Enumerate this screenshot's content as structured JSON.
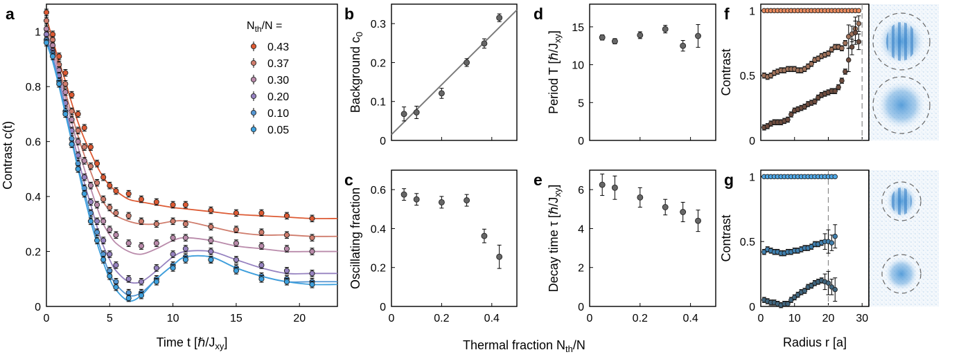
{
  "colors": {
    "series": [
      "#dd5a33",
      "#cf7c6c",
      "#b98aaa",
      "#9682c0",
      "#5596d2",
      "#3ea0dd"
    ],
    "grey": "#666666",
    "brown": "#a0725a",
    "brown_dark": "#6e4c3e",
    "salmon": "#e98a5e",
    "blue_light": "#4fa8e6",
    "blue_mid": "#3f7fae",
    "blue_dark": "#40667f"
  },
  "labels": {
    "shared_x": "Thermal fraction  N",
    "shared_x_sub": "th",
    "shared_x_tail": "/N"
  },
  "chart_data": [
    {
      "id": "a",
      "type": "line",
      "panel": "a",
      "xlabel": "Time t [ℏ/J",
      "xlabel_sub": "xy",
      "xlabel_tail": "]",
      "ylabel": "Contrast  c(t)",
      "xlim": [
        0,
        23
      ],
      "ylim": [
        0,
        1.1
      ],
      "xticks": [
        "0",
        "5",
        "10",
        "15",
        "20"
      ],
      "xtick_values": [
        0,
        5,
        10,
        15,
        20
      ],
      "yticks": [
        "0",
        "0.2",
        "0.4",
        "0.6",
        "0.8",
        "1"
      ],
      "ytick_values": [
        0,
        0.2,
        0.4,
        0.6,
        0.8,
        1
      ],
      "legend_title": "N",
      "legend_title_sub": "th",
      "legend_title_tail": "/N =",
      "legend_placement": "top-right",
      "x": [
        0,
        0.5,
        1,
        1.5,
        2,
        2.5,
        3,
        3.5,
        4,
        4.5,
        5,
        5.5,
        6.5,
        7.5,
        8.7,
        10,
        11,
        13,
        15,
        17,
        19,
        21
      ],
      "series": [
        {
          "name": "0.43",
          "values": [
            1.07,
            0.99,
            0.91,
            0.85,
            0.77,
            0.7,
            0.65,
            0.58,
            0.52,
            0.47,
            0.44,
            0.42,
            0.41,
            0.39,
            0.38,
            0.37,
            0.37,
            0.35,
            0.34,
            0.34,
            0.33,
            0.32
          ],
          "fit": [
            1.05,
            0.97,
            0.89,
            0.82,
            0.74,
            0.67,
            0.61,
            0.56,
            0.51,
            0.47,
            0.44,
            0.42,
            0.39,
            0.38,
            0.37,
            0.36,
            0.355,
            0.345,
            0.335,
            0.33,
            0.325,
            0.32
          ]
        },
        {
          "name": "0.37",
          "values": [
            1.04,
            0.97,
            0.88,
            0.81,
            0.71,
            0.64,
            0.58,
            0.51,
            0.45,
            0.39,
            0.36,
            0.34,
            0.33,
            0.31,
            0.3,
            0.31,
            0.3,
            0.29,
            0.28,
            0.27,
            0.26,
            0.25
          ],
          "fit": [
            1.02,
            0.95,
            0.87,
            0.78,
            0.7,
            0.62,
            0.55,
            0.49,
            0.43,
            0.38,
            0.35,
            0.33,
            0.31,
            0.3,
            0.3,
            0.31,
            0.31,
            0.29,
            0.27,
            0.26,
            0.26,
            0.255
          ]
        },
        {
          "name": "0.30",
          "values": [
            1.01,
            0.95,
            0.86,
            0.78,
            0.68,
            0.6,
            0.53,
            0.44,
            0.37,
            0.31,
            0.28,
            0.26,
            0.23,
            0.22,
            0.23,
            0.25,
            0.25,
            0.24,
            0.23,
            0.22,
            0.21,
            0.2
          ],
          "fit": [
            1.0,
            0.93,
            0.85,
            0.76,
            0.67,
            0.58,
            0.5,
            0.43,
            0.36,
            0.3,
            0.26,
            0.23,
            0.2,
            0.19,
            0.21,
            0.24,
            0.25,
            0.24,
            0.22,
            0.21,
            0.2,
            0.2
          ]
        },
        {
          "name": "0.20",
          "values": [
            0.99,
            0.93,
            0.84,
            0.74,
            0.64,
            0.55,
            0.47,
            0.38,
            0.31,
            0.24,
            0.19,
            0.15,
            0.1,
            0.09,
            0.14,
            0.19,
            0.21,
            0.2,
            0.17,
            0.15,
            0.13,
            0.12
          ],
          "fit": [
            0.98,
            0.91,
            0.83,
            0.73,
            0.63,
            0.54,
            0.45,
            0.37,
            0.29,
            0.22,
            0.17,
            0.13,
            0.09,
            0.09,
            0.13,
            0.18,
            0.2,
            0.2,
            0.17,
            0.14,
            0.12,
            0.12
          ]
        },
        {
          "name": "0.10",
          "values": [
            0.97,
            0.92,
            0.82,
            0.71,
            0.61,
            0.52,
            0.43,
            0.34,
            0.27,
            0.19,
            0.13,
            0.09,
            0.05,
            0.05,
            0.1,
            0.15,
            0.18,
            0.17,
            0.14,
            0.11,
            0.1,
            0.09
          ],
          "fit": [
            0.97,
            0.9,
            0.81,
            0.71,
            0.61,
            0.51,
            0.42,
            0.33,
            0.25,
            0.18,
            0.12,
            0.08,
            0.04,
            0.05,
            0.1,
            0.15,
            0.18,
            0.18,
            0.14,
            0.11,
            0.09,
            0.09
          ]
        },
        {
          "name": "0.05",
          "values": [
            0.96,
            0.91,
            0.81,
            0.7,
            0.59,
            0.5,
            0.41,
            0.31,
            0.24,
            0.17,
            0.11,
            0.07,
            0.03,
            0.04,
            0.09,
            0.14,
            0.17,
            0.17,
            0.13,
            0.1,
            0.09,
            0.08
          ],
          "fit": [
            0.96,
            0.89,
            0.8,
            0.7,
            0.6,
            0.5,
            0.4,
            0.31,
            0.23,
            0.16,
            0.1,
            0.06,
            0.02,
            0.04,
            0.1,
            0.15,
            0.18,
            0.18,
            0.14,
            0.11,
            0.09,
            0.08
          ]
        }
      ]
    },
    {
      "id": "b",
      "type": "scatter",
      "panel": "b",
      "ylabel": "Background  c",
      "ylabel_sub": "0",
      "xlim": [
        0,
        0.5
      ],
      "ylim": [
        0,
        0.35
      ],
      "yticks": [
        "0",
        "0.1",
        "0.2",
        "0.3"
      ],
      "ytick_values": [
        0,
        0.1,
        0.2,
        0.3
      ],
      "x": [
        0.05,
        0.1,
        0.2,
        0.3,
        0.37,
        0.43
      ],
      "values": [
        0.068,
        0.072,
        0.121,
        0.2,
        0.249,
        0.315
      ],
      "errors": [
        0.018,
        0.016,
        0.013,
        0.01,
        0.012,
        0.01
      ],
      "fit_line": {
        "x": [
          0,
          0.5
        ],
        "y": [
          0.015,
          0.335
        ]
      }
    },
    {
      "id": "c",
      "type": "scatter",
      "panel": "c",
      "ylabel": "Oscillating fraction",
      "xlim": [
        0,
        0.5
      ],
      "ylim": [
        0,
        0.7
      ],
      "xticks": [
        "0",
        "0.2",
        "0.4"
      ],
      "xtick_values": [
        0,
        0.2,
        0.4
      ],
      "yticks": [
        "0",
        "0.2",
        "0.4",
        "0.6"
      ],
      "ytick_values": [
        0,
        0.2,
        0.4,
        0.6
      ],
      "x": [
        0.05,
        0.1,
        0.2,
        0.3,
        0.37,
        0.43
      ],
      "values": [
        0.575,
        0.55,
        0.535,
        0.545,
        0.362,
        0.255
      ],
      "errors": [
        0.03,
        0.03,
        0.03,
        0.03,
        0.035,
        0.06
      ]
    },
    {
      "id": "d",
      "type": "scatter",
      "panel": "d",
      "ylabel": "Period  T  [ℏ/J",
      "ylabel_sub": "xy",
      "ylabel_tail": "]",
      "xlim": [
        0,
        0.5
      ],
      "ylim": [
        0,
        18
      ],
      "yticks": [
        "0",
        "5",
        "10",
        "15"
      ],
      "ytick_values": [
        0,
        5,
        10,
        15
      ],
      "x": [
        0.05,
        0.1,
        0.2,
        0.3,
        0.37,
        0.43
      ],
      "values": [
        13.6,
        13.1,
        13.9,
        14.7,
        12.5,
        13.8
      ],
      "errors": [
        0.35,
        0.35,
        0.45,
        0.5,
        0.7,
        1.5
      ]
    },
    {
      "id": "e",
      "type": "scatter",
      "panel": "e",
      "ylabel": "Decay time  τ  [ℏ/J",
      "ylabel_sub": "xy",
      "ylabel_tail": "]",
      "xlim": [
        0,
        0.5
      ],
      "ylim": [
        0,
        7
      ],
      "xticks": [
        "0",
        "0.2",
        "0.4"
      ],
      "xtick_values": [
        0,
        0.2,
        0.4
      ],
      "yticks": [
        "0",
        "2",
        "4",
        "6"
      ],
      "ytick_values": [
        0,
        2,
        4,
        6
      ],
      "x": [
        0.05,
        0.1,
        0.2,
        0.3,
        0.37,
        0.43
      ],
      "values": [
        6.25,
        6.1,
        5.6,
        5.1,
        4.85,
        4.4
      ],
      "errors": [
        0.55,
        0.6,
        0.5,
        0.4,
        0.5,
        0.55
      ]
    },
    {
      "id": "f",
      "type": "scatter",
      "panel": "f",
      "ylabel": "Contrast",
      "xlim": [
        0,
        32
      ],
      "ylim": [
        0,
        1.05
      ],
      "yticks": [
        "0",
        "0.5",
        "1"
      ],
      "ytick_values": [
        0,
        0.5,
        1
      ],
      "vline": 30,
      "x": [
        1,
        2,
        3,
        4,
        5,
        6,
        7,
        8,
        9,
        10,
        11,
        12,
        13,
        14,
        15,
        16,
        17,
        18,
        19,
        20,
        21,
        22,
        23,
        24,
        25,
        26,
        27,
        28,
        29
      ],
      "series": [
        {
          "values": [
            1,
            1,
            1,
            1,
            1,
            1,
            1,
            1,
            1,
            1,
            1,
            1,
            1,
            1,
            1,
            1,
            1,
            1,
            1,
            1,
            1,
            1,
            1,
            1,
            1,
            1,
            1,
            1,
            1
          ]
        },
        {
          "values": [
            0.5,
            0.49,
            0.5,
            0.52,
            0.53,
            0.54,
            0.54,
            0.55,
            0.55,
            0.55,
            0.54,
            0.54,
            0.55,
            0.57,
            0.59,
            0.62,
            0.63,
            0.65,
            0.66,
            0.67,
            0.7,
            0.72,
            0.72,
            0.71,
            0.75,
            0.8,
            0.82,
            0.86,
            0.9
          ]
        },
        {
          "values": [
            0.1,
            0.11,
            0.13,
            0.14,
            0.14,
            0.14,
            0.15,
            0.16,
            0.2,
            0.23,
            0.24,
            0.25,
            0.26,
            0.28,
            0.29,
            0.3,
            0.33,
            0.35,
            0.36,
            0.37,
            0.38,
            0.38,
            0.41,
            0.46,
            0.53,
            0.62,
            0.72,
            0.83,
            0.76
          ]
        }
      ]
    },
    {
      "id": "g",
      "type": "scatter",
      "panel": "g",
      "ylabel": "Contrast",
      "xlabel": "Radius  r  [a]",
      "xlim": [
        0,
        32
      ],
      "ylim": [
        0,
        1.05
      ],
      "xticks": [
        "0",
        "10",
        "20",
        "30"
      ],
      "xtick_values": [
        0,
        10,
        20,
        30
      ],
      "yticks": [
        "0",
        "0.5",
        "1"
      ],
      "ytick_values": [
        0,
        0.5,
        1
      ],
      "vline": 20,
      "x": [
        1,
        2,
        3,
        4,
        5,
        6,
        7,
        8,
        9,
        10,
        11,
        12,
        13,
        14,
        15,
        16,
        17,
        18,
        19,
        20,
        21,
        22
      ],
      "series": [
        {
          "values": [
            1,
            1,
            1,
            1,
            1,
            1,
            1,
            1,
            1,
            1,
            1,
            1,
            1,
            1,
            1,
            1,
            1,
            1,
            1,
            1,
            1,
            1
          ]
        },
        {
          "values": [
            0.42,
            0.44,
            0.43,
            0.42,
            0.42,
            0.41,
            0.41,
            0.42,
            0.42,
            0.43,
            0.43,
            0.44,
            0.45,
            0.45,
            0.46,
            0.48,
            0.48,
            0.49,
            0.5,
            0.5,
            0.49,
            0.54
          ]
        },
        {
          "values": [
            0.05,
            0.04,
            0.03,
            0.03,
            0.02,
            0.01,
            0.02,
            0.02,
            0.05,
            0.07,
            0.09,
            0.11,
            0.12,
            0.15,
            0.16,
            0.18,
            0.19,
            0.2,
            0.19,
            0.18,
            0.15,
            0.13
          ]
        }
      ]
    }
  ]
}
